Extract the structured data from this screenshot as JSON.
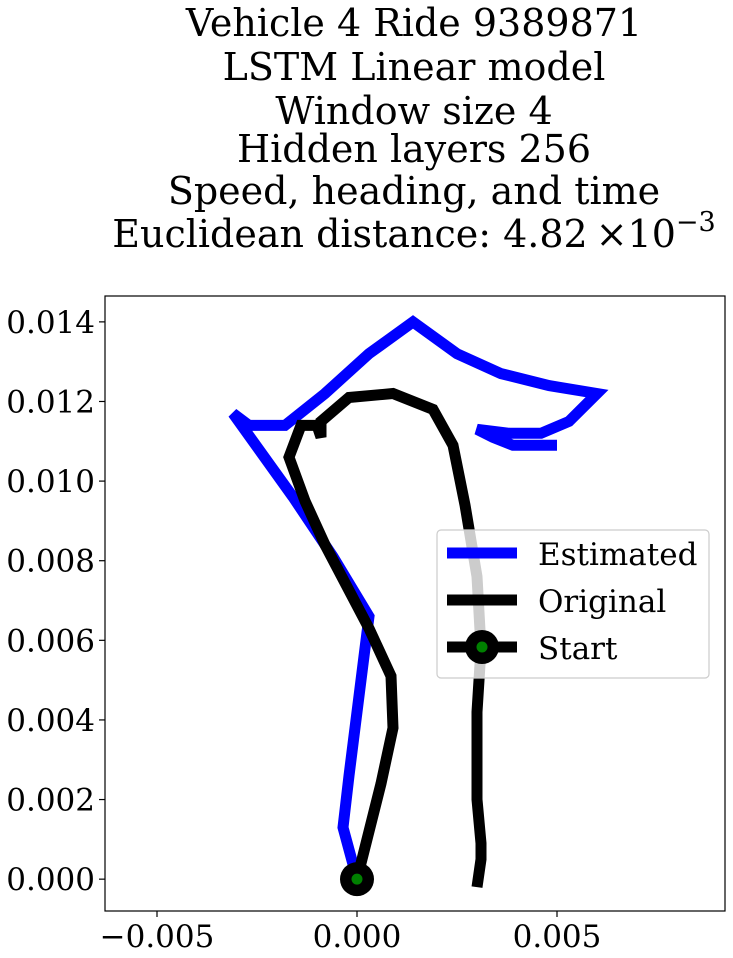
{
  "chart_data": {
    "type": "line",
    "title_lines": [
      "Vehicle 4 Ride 9389871",
      "LSTM Linear model",
      "Window size 4",
      "Hidden layers 256",
      "Speed, heading, and time"
    ],
    "title_distance_prefix": "Euclidean distance: 4.82",
    "title_distance_times": "×10",
    "title_distance_exponent": "−3",
    "xlabel": "",
    "ylabel": "",
    "xlim": [
      -0.0063,
      0.0092
    ],
    "ylim": [
      -0.0008,
      0.01465
    ],
    "xticks": [
      -0.005,
      0.0,
      0.005
    ],
    "xtick_labels": [
      "−0.005",
      "0.000",
      "0.005"
    ],
    "yticks": [
      0.0,
      0.002,
      0.004,
      0.006,
      0.008,
      0.01,
      0.012,
      0.014
    ],
    "ytick_labels": [
      "0.000",
      "0.002",
      "0.004",
      "0.006",
      "0.008",
      "0.010",
      "0.012",
      "0.014"
    ],
    "legend": {
      "placement": "center-right",
      "entries": [
        "Estimated",
        "Original",
        "Start"
      ]
    },
    "series": [
      {
        "name": "Estimated",
        "color": "#0000ff",
        "points": [
          [
            0.0,
            0.0
          ],
          [
            -0.00035,
            0.0013
          ],
          [
            -0.0002,
            0.0026
          ],
          [
            0.0,
            0.0042
          ],
          [
            0.0002,
            0.0058
          ],
          [
            0.0003,
            0.0066
          ],
          [
            -0.0006,
            0.0081
          ],
          [
            -0.0016,
            0.0096
          ],
          [
            -0.0031,
            0.0117
          ],
          [
            -0.0027,
            0.0114
          ],
          [
            -0.0018,
            0.0114
          ],
          [
            -0.0008,
            0.0122
          ],
          [
            0.0003,
            0.0132
          ],
          [
            0.0014,
            0.014
          ],
          [
            0.0025,
            0.0132
          ],
          [
            0.0036,
            0.0127
          ],
          [
            0.0048,
            0.0124
          ],
          [
            0.006,
            0.0122
          ],
          [
            0.0053,
            0.0115
          ],
          [
            0.0046,
            0.0112
          ],
          [
            0.0038,
            0.0112
          ],
          [
            0.003,
            0.0113
          ],
          [
            0.0034,
            0.0111
          ],
          [
            0.0039,
            0.0109
          ],
          [
            0.005,
            0.0109
          ]
        ]
      },
      {
        "name": "Original",
        "color": "#000000",
        "points": [
          [
            0.0,
            0.0
          ],
          [
            0.0006,
            0.0024
          ],
          [
            0.0009,
            0.0038
          ],
          [
            0.00085,
            0.0051
          ],
          [
            0.0003,
            0.0063
          ],
          [
            -0.0008,
            0.0084
          ],
          [
            -0.0013,
            0.0095
          ],
          [
            -0.0017,
            0.0106
          ],
          [
            -0.0014,
            0.0114
          ],
          [
            -0.001,
            0.0114
          ],
          [
            -0.0009,
            0.0111
          ],
          [
            -0.0009,
            0.0115
          ],
          [
            -0.0002,
            0.0121
          ],
          [
            0.0009,
            0.0122
          ],
          [
            0.0019,
            0.0118
          ],
          [
            0.0024,
            0.0109
          ],
          [
            0.0027,
            0.0094
          ],
          [
            0.003,
            0.0076
          ],
          [
            0.0031,
            0.0058
          ],
          [
            0.003,
            0.0042
          ],
          [
            0.003,
            0.002
          ],
          [
            0.0031,
            0.0009
          ],
          [
            0.0031,
            0.0005
          ],
          [
            0.003,
            -0.0002
          ]
        ]
      }
    ],
    "start_point": {
      "name": "Start",
      "x": 0.0,
      "y": 0.0,
      "outer_color": "#000000",
      "inner_color": "#008000"
    },
    "grid": false
  }
}
